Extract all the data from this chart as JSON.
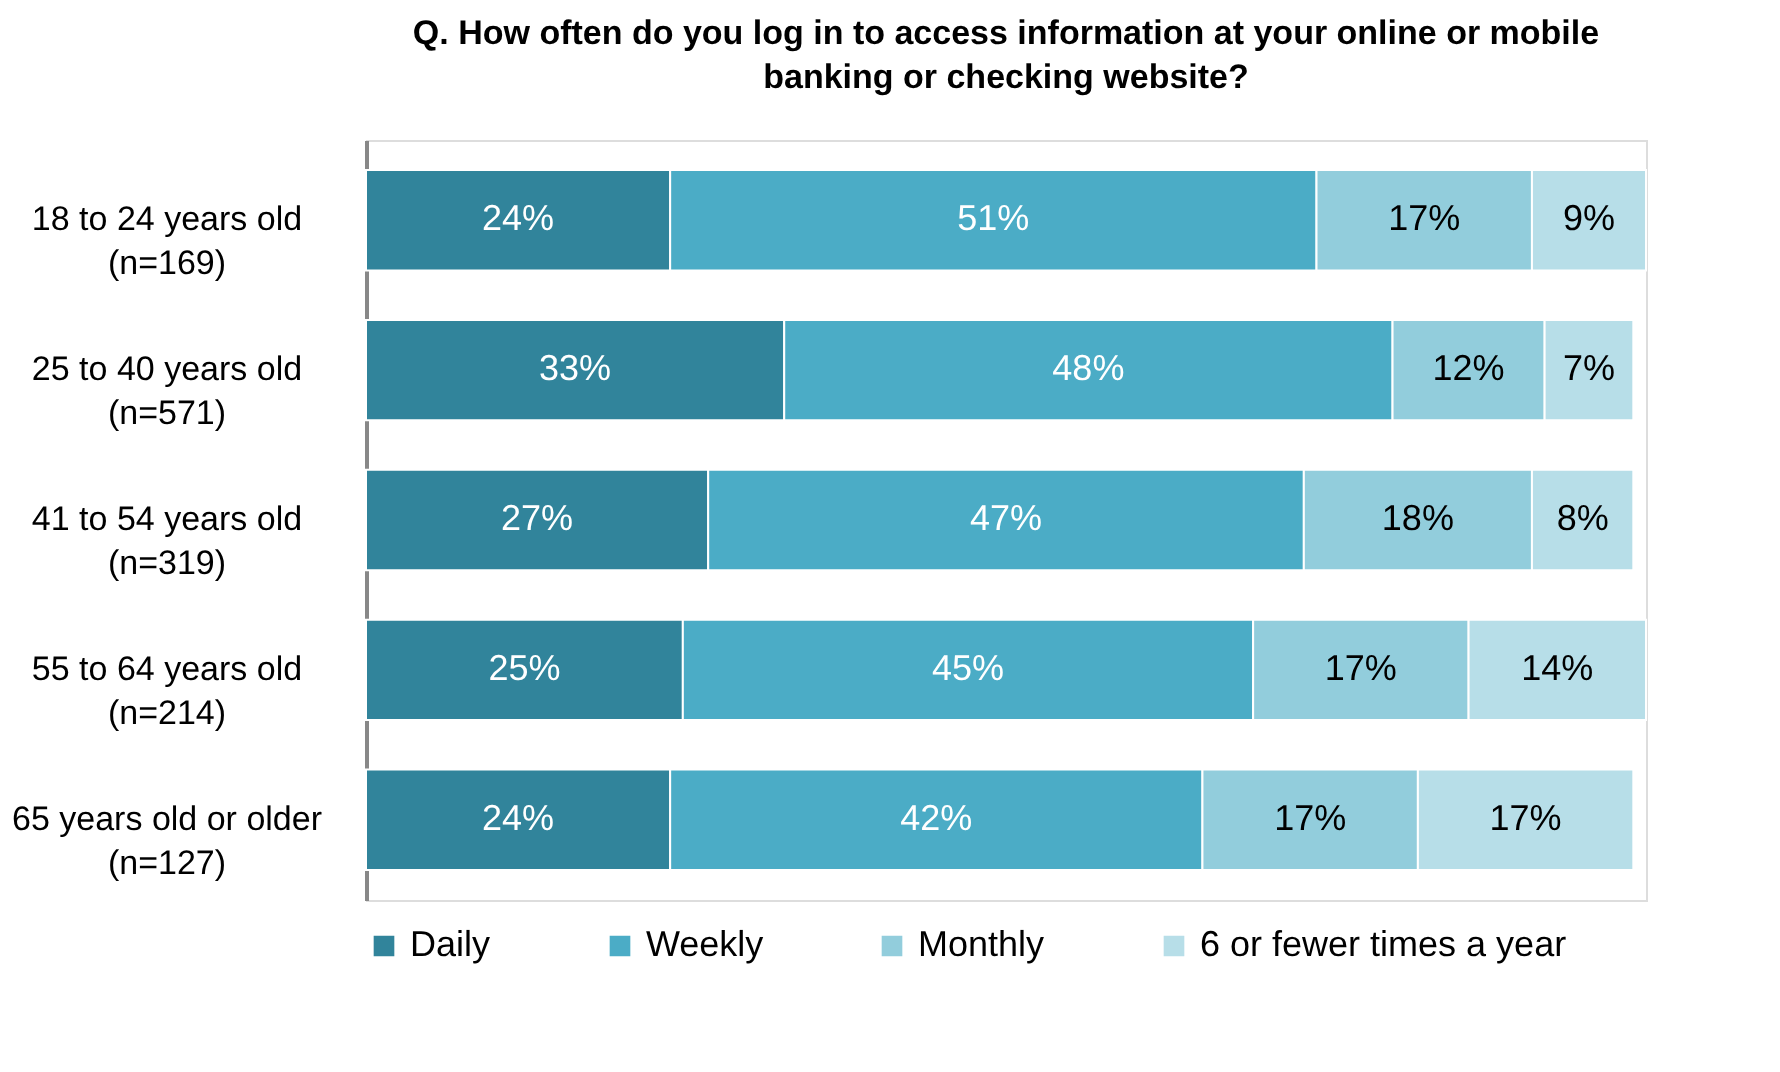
{
  "chart_data": {
    "type": "bar",
    "orientation": "horizontal",
    "stacked": true,
    "legend": "bottom",
    "grid": false,
    "title": "Q. How often do you log in to access information at your online or mobile banking or checking website?",
    "categories": [
      "18 to 24 years old\n(n=169)",
      "25 to 40 years old\n(n=571)",
      "41 to 54 years old\n(n=319)",
      "55 to 64 years old\n(n=214)",
      "65 years old or older\n(n=127)"
    ],
    "series": [
      {
        "name": "Daily",
        "color": "#31849b",
        "values": [
          24,
          33,
          27,
          25,
          24
        ],
        "value_labels": [
          "24%",
          "33%",
          "27%",
          "25%",
          "24%"
        ]
      },
      {
        "name": "Weekly",
        "color": "#4bacc6",
        "values": [
          51,
          48,
          47,
          45,
          42
        ],
        "value_labels": [
          "51%",
          "48%",
          "47%",
          "45%",
          "42%"
        ]
      },
      {
        "name": "Monthly",
        "color": "#92cddc",
        "values": [
          17,
          12,
          18,
          17,
          17
        ],
        "value_labels": [
          "17%",
          "12%",
          "18%",
          "17%",
          "17%"
        ]
      },
      {
        "name": "6 or fewer times a year",
        "color": "#b7dee8",
        "values": [
          9,
          7,
          8,
          14,
          17
        ],
        "value_labels": [
          "9%",
          "7%",
          "8%",
          "14%",
          "17%"
        ]
      }
    ]
  }
}
